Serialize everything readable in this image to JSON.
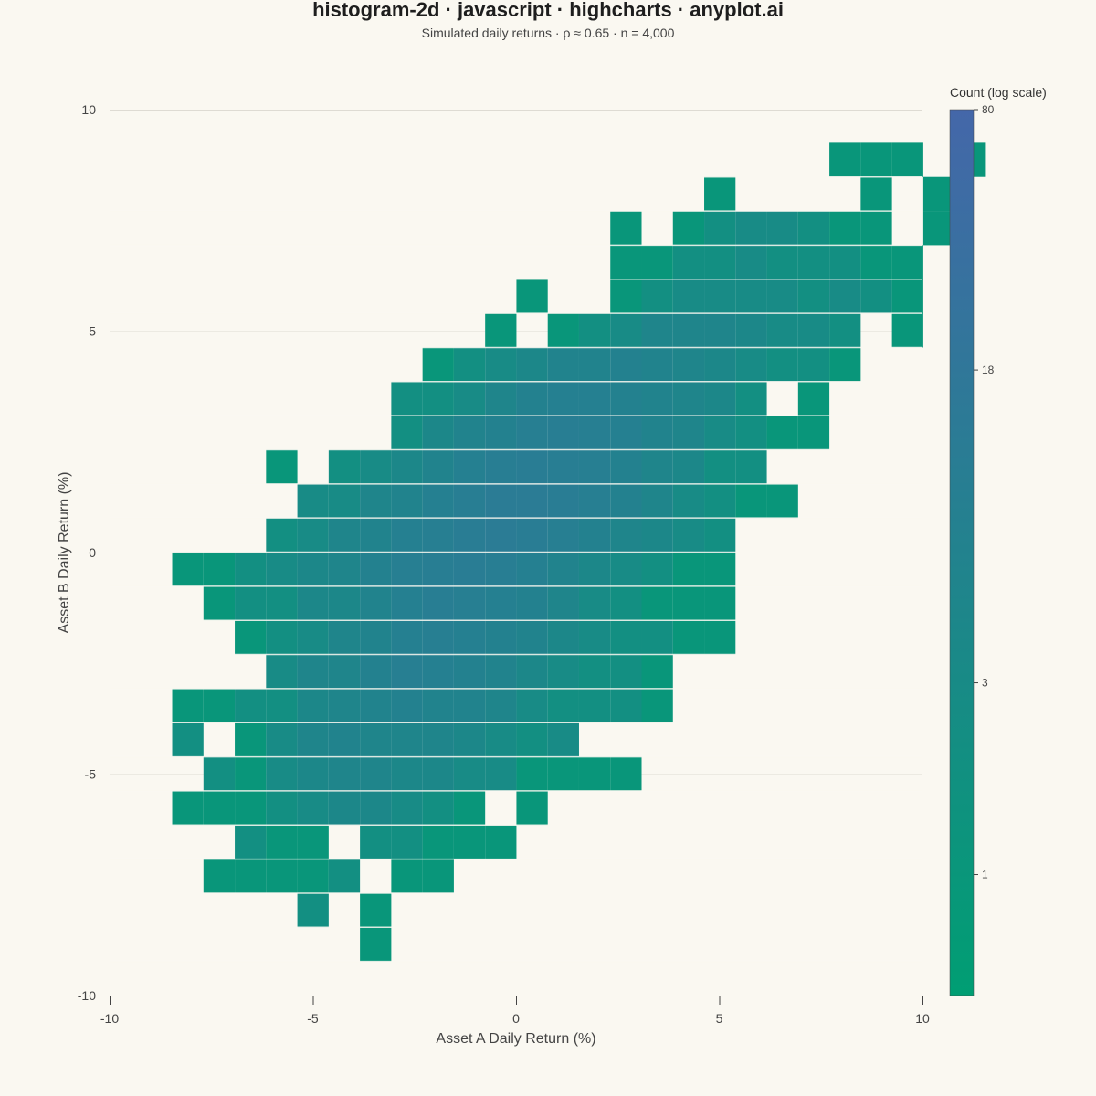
{
  "chart_data": {
    "type": "heatmap",
    "title": "histogram-2d · javascript · highcharts · anyplot.ai",
    "subtitle": "Simulated daily returns · ρ ≈ 0.65 · n = 4,000",
    "xlabel": "Asset A Daily Return (%)",
    "ylabel": "Asset B Daily Return (%)",
    "xlim": [
      -10,
      10
    ],
    "ylim": [
      -10,
      10
    ],
    "x_ticks": [
      "-10",
      "-5",
      "0",
      "5",
      "10"
    ],
    "y_ticks": [
      "10",
      "5",
      "0",
      "-5",
      "-10"
    ],
    "bin_width_x": 0.77,
    "bin_width_y": 0.77,
    "x_bin_start": -8.46,
    "y_bin_start": -9.23,
    "colorbar": {
      "title": "Count (log scale)",
      "min": 0.5,
      "max": 80,
      "ticks": [
        "80",
        "18",
        "3",
        "1"
      ],
      "tick_values": [
        80,
        18,
        3,
        1
      ],
      "color_low": "#009E73",
      "color_high": "#4467A9"
    },
    "gridlines": true,
    "rows": [
      {
        "yi": 0,
        "cells": [
          [
            6,
            1
          ]
        ]
      },
      {
        "yi": 1,
        "cells": [
          [
            4,
            2
          ],
          [
            6,
            1
          ]
        ]
      },
      {
        "yi": 2,
        "cells": [
          [
            1,
            1
          ],
          [
            2,
            1
          ],
          [
            3,
            1
          ],
          [
            4,
            1
          ],
          [
            5,
            2
          ],
          [
            7,
            1
          ],
          [
            8,
            1
          ]
        ]
      },
      {
        "yi": 3,
        "cells": [
          [
            2,
            2
          ],
          [
            3,
            1
          ],
          [
            4,
            1
          ],
          [
            6,
            2
          ],
          [
            7,
            2
          ],
          [
            8,
            1
          ],
          [
            9,
            1
          ],
          [
            10,
            1
          ]
        ]
      },
      {
        "yi": 4,
        "cells": [
          [
            0,
            1
          ],
          [
            1,
            1
          ],
          [
            2,
            1
          ],
          [
            3,
            2
          ],
          [
            4,
            3
          ],
          [
            5,
            4
          ],
          [
            6,
            4
          ],
          [
            7,
            3
          ],
          [
            8,
            2
          ],
          [
            9,
            1
          ],
          [
            11,
            1
          ]
        ]
      },
      {
        "yi": 5,
        "cells": [
          [
            1,
            2
          ],
          [
            2,
            1
          ],
          [
            3,
            3
          ],
          [
            4,
            4
          ],
          [
            5,
            5
          ],
          [
            6,
            5
          ],
          [
            7,
            4
          ],
          [
            8,
            4
          ],
          [
            9,
            3
          ],
          [
            10,
            3
          ],
          [
            11,
            1
          ],
          [
            12,
            1
          ],
          [
            13,
            1
          ],
          [
            14,
            1
          ]
        ]
      },
      {
        "yi": 6,
        "cells": [
          [
            0,
            2
          ],
          [
            2,
            1
          ],
          [
            3,
            3
          ],
          [
            4,
            5
          ],
          [
            5,
            6
          ],
          [
            6,
            5
          ],
          [
            7,
            5
          ],
          [
            8,
            5
          ],
          [
            9,
            4
          ],
          [
            10,
            3
          ],
          [
            11,
            2
          ],
          [
            12,
            3
          ]
        ]
      },
      {
        "yi": 7,
        "cells": [
          [
            0,
            1
          ],
          [
            1,
            1
          ],
          [
            2,
            2
          ],
          [
            3,
            2
          ],
          [
            4,
            4
          ],
          [
            5,
            5
          ],
          [
            6,
            6
          ],
          [
            7,
            7
          ],
          [
            8,
            6
          ],
          [
            9,
            6
          ],
          [
            10,
            5
          ],
          [
            11,
            3
          ],
          [
            12,
            2
          ],
          [
            13,
            2
          ],
          [
            14,
            2
          ],
          [
            15,
            1
          ]
        ]
      },
      {
        "yi": 8,
        "cells": [
          [
            3,
            3
          ],
          [
            4,
            5
          ],
          [
            5,
            5
          ],
          [
            6,
            7
          ],
          [
            7,
            9
          ],
          [
            8,
            8
          ],
          [
            9,
            7
          ],
          [
            10,
            6
          ],
          [
            11,
            4
          ],
          [
            12,
            3
          ],
          [
            13,
            2
          ],
          [
            14,
            2
          ],
          [
            15,
            1
          ]
        ]
      },
      {
        "yi": 9,
        "cells": [
          [
            2,
            1
          ],
          [
            3,
            2
          ],
          [
            4,
            3
          ],
          [
            5,
            5
          ],
          [
            6,
            6
          ],
          [
            7,
            8
          ],
          [
            8,
            9
          ],
          [
            9,
            8
          ],
          [
            10,
            7
          ],
          [
            11,
            6
          ],
          [
            12,
            4
          ],
          [
            13,
            3
          ],
          [
            14,
            2
          ],
          [
            15,
            2
          ],
          [
            16,
            1
          ],
          [
            17,
            1
          ]
        ]
      },
      {
        "yi": 10,
        "cells": [
          [
            1,
            1
          ],
          [
            2,
            2
          ],
          [
            3,
            2
          ],
          [
            4,
            4
          ],
          [
            5,
            4
          ],
          [
            6,
            6
          ],
          [
            7,
            8
          ],
          [
            8,
            10
          ],
          [
            9,
            9
          ],
          [
            10,
            8
          ],
          [
            11,
            7
          ],
          [
            12,
            5
          ],
          [
            13,
            3
          ],
          [
            14,
            2
          ],
          [
            15,
            1
          ],
          [
            16,
            1
          ],
          [
            17,
            1
          ]
        ]
      },
      {
        "yi": 11,
        "cells": [
          [
            0,
            1
          ],
          [
            1,
            1
          ],
          [
            2,
            2
          ],
          [
            3,
            3
          ],
          [
            4,
            4
          ],
          [
            5,
            5
          ],
          [
            6,
            7
          ],
          [
            7,
            9
          ],
          [
            8,
            10
          ],
          [
            9,
            11
          ],
          [
            10,
            10
          ],
          [
            11,
            8
          ],
          [
            12,
            6
          ],
          [
            13,
            4
          ],
          [
            14,
            3
          ],
          [
            15,
            2
          ],
          [
            16,
            1
          ],
          [
            17,
            1
          ]
        ]
      },
      {
        "yi": 12,
        "cells": [
          [
            3,
            2
          ],
          [
            4,
            3
          ],
          [
            5,
            5
          ],
          [
            6,
            6
          ],
          [
            7,
            8
          ],
          [
            8,
            9
          ],
          [
            9,
            11
          ],
          [
            10,
            12
          ],
          [
            11,
            11
          ],
          [
            12,
            9
          ],
          [
            13,
            7
          ],
          [
            14,
            5
          ],
          [
            15,
            4
          ],
          [
            16,
            3
          ],
          [
            17,
            2
          ]
        ]
      },
      {
        "yi": 13,
        "cells": [
          [
            4,
            3
          ],
          [
            5,
            3
          ],
          [
            6,
            5
          ],
          [
            7,
            6
          ],
          [
            8,
            8
          ],
          [
            9,
            10
          ],
          [
            10,
            12
          ],
          [
            11,
            12
          ],
          [
            12,
            11
          ],
          [
            13,
            9
          ],
          [
            14,
            7
          ],
          [
            15,
            5
          ],
          [
            16,
            3
          ],
          [
            17,
            2
          ],
          [
            18,
            1
          ],
          [
            19,
            1
          ]
        ]
      },
      {
        "yi": 14,
        "cells": [
          [
            3,
            1
          ],
          [
            5,
            2
          ],
          [
            6,
            3
          ],
          [
            7,
            4
          ],
          [
            8,
            6
          ],
          [
            9,
            8
          ],
          [
            10,
            10
          ],
          [
            11,
            11
          ],
          [
            12,
            10
          ],
          [
            13,
            9
          ],
          [
            14,
            7
          ],
          [
            15,
            5
          ],
          [
            16,
            4
          ],
          [
            17,
            2
          ],
          [
            18,
            2
          ]
        ]
      },
      {
        "yi": 15,
        "cells": [
          [
            7,
            2
          ],
          [
            8,
            4
          ],
          [
            9,
            6
          ],
          [
            10,
            7
          ],
          [
            11,
            9
          ],
          [
            12,
            10
          ],
          [
            13,
            9
          ],
          [
            14,
            8
          ],
          [
            15,
            6
          ],
          [
            16,
            5
          ],
          [
            17,
            3
          ],
          [
            18,
            2
          ],
          [
            19,
            1
          ],
          [
            20,
            1
          ]
        ]
      },
      {
        "yi": 16,
        "cells": [
          [
            7,
            2
          ],
          [
            8,
            2
          ],
          [
            9,
            3
          ],
          [
            10,
            5
          ],
          [
            11,
            7
          ],
          [
            12,
            8
          ],
          [
            13,
            8
          ],
          [
            14,
            7
          ],
          [
            15,
            6
          ],
          [
            16,
            5
          ],
          [
            17,
            4
          ],
          [
            18,
            2
          ],
          [
            20,
            1
          ]
        ]
      },
      {
        "yi": 17,
        "cells": [
          [
            8,
            1
          ],
          [
            9,
            2
          ],
          [
            10,
            3
          ],
          [
            11,
            4
          ],
          [
            12,
            6
          ],
          [
            13,
            6
          ],
          [
            14,
            7
          ],
          [
            15,
            6
          ],
          [
            16,
            5
          ],
          [
            17,
            4
          ],
          [
            18,
            3
          ],
          [
            19,
            2
          ],
          [
            20,
            2
          ],
          [
            21,
            1
          ]
        ]
      },
      {
        "yi": 18,
        "cells": [
          [
            10,
            1
          ],
          [
            12,
            1
          ],
          [
            13,
            2
          ],
          [
            14,
            3
          ],
          [
            15,
            5
          ],
          [
            16,
            5
          ],
          [
            17,
            5
          ],
          [
            18,
            4
          ],
          [
            19,
            3
          ],
          [
            20,
            3
          ],
          [
            21,
            2
          ],
          [
            23,
            1
          ]
        ]
      },
      {
        "yi": 19,
        "cells": [
          [
            11,
            1
          ],
          [
            14,
            1
          ],
          [
            15,
            2
          ],
          [
            16,
            3
          ],
          [
            17,
            3
          ],
          [
            18,
            3
          ],
          [
            19,
            3
          ],
          [
            20,
            2
          ],
          [
            21,
            3
          ],
          [
            22,
            2
          ],
          [
            23,
            1
          ]
        ]
      },
      {
        "yi": 20,
        "cells": [
          [
            14,
            1
          ],
          [
            15,
            1
          ],
          [
            16,
            2
          ],
          [
            17,
            2
          ],
          [
            18,
            3
          ],
          [
            19,
            2
          ],
          [
            20,
            2
          ],
          [
            21,
            2
          ],
          [
            22,
            1
          ],
          [
            23,
            1
          ]
        ]
      },
      {
        "yi": 21,
        "cells": [
          [
            14,
            1
          ],
          [
            16,
            1
          ],
          [
            17,
            2
          ],
          [
            18,
            3
          ],
          [
            19,
            3
          ],
          [
            20,
            2
          ],
          [
            21,
            1
          ],
          [
            22,
            1
          ],
          [
            24,
            1
          ]
        ]
      },
      {
        "yi": 22,
        "cells": [
          [
            17,
            1
          ],
          [
            22,
            1
          ],
          [
            24,
            1
          ]
        ]
      },
      {
        "yi": 23,
        "cells": [
          [
            21,
            1
          ],
          [
            22,
            1
          ],
          [
            23,
            1
          ],
          [
            25,
            1
          ]
        ]
      }
    ]
  }
}
